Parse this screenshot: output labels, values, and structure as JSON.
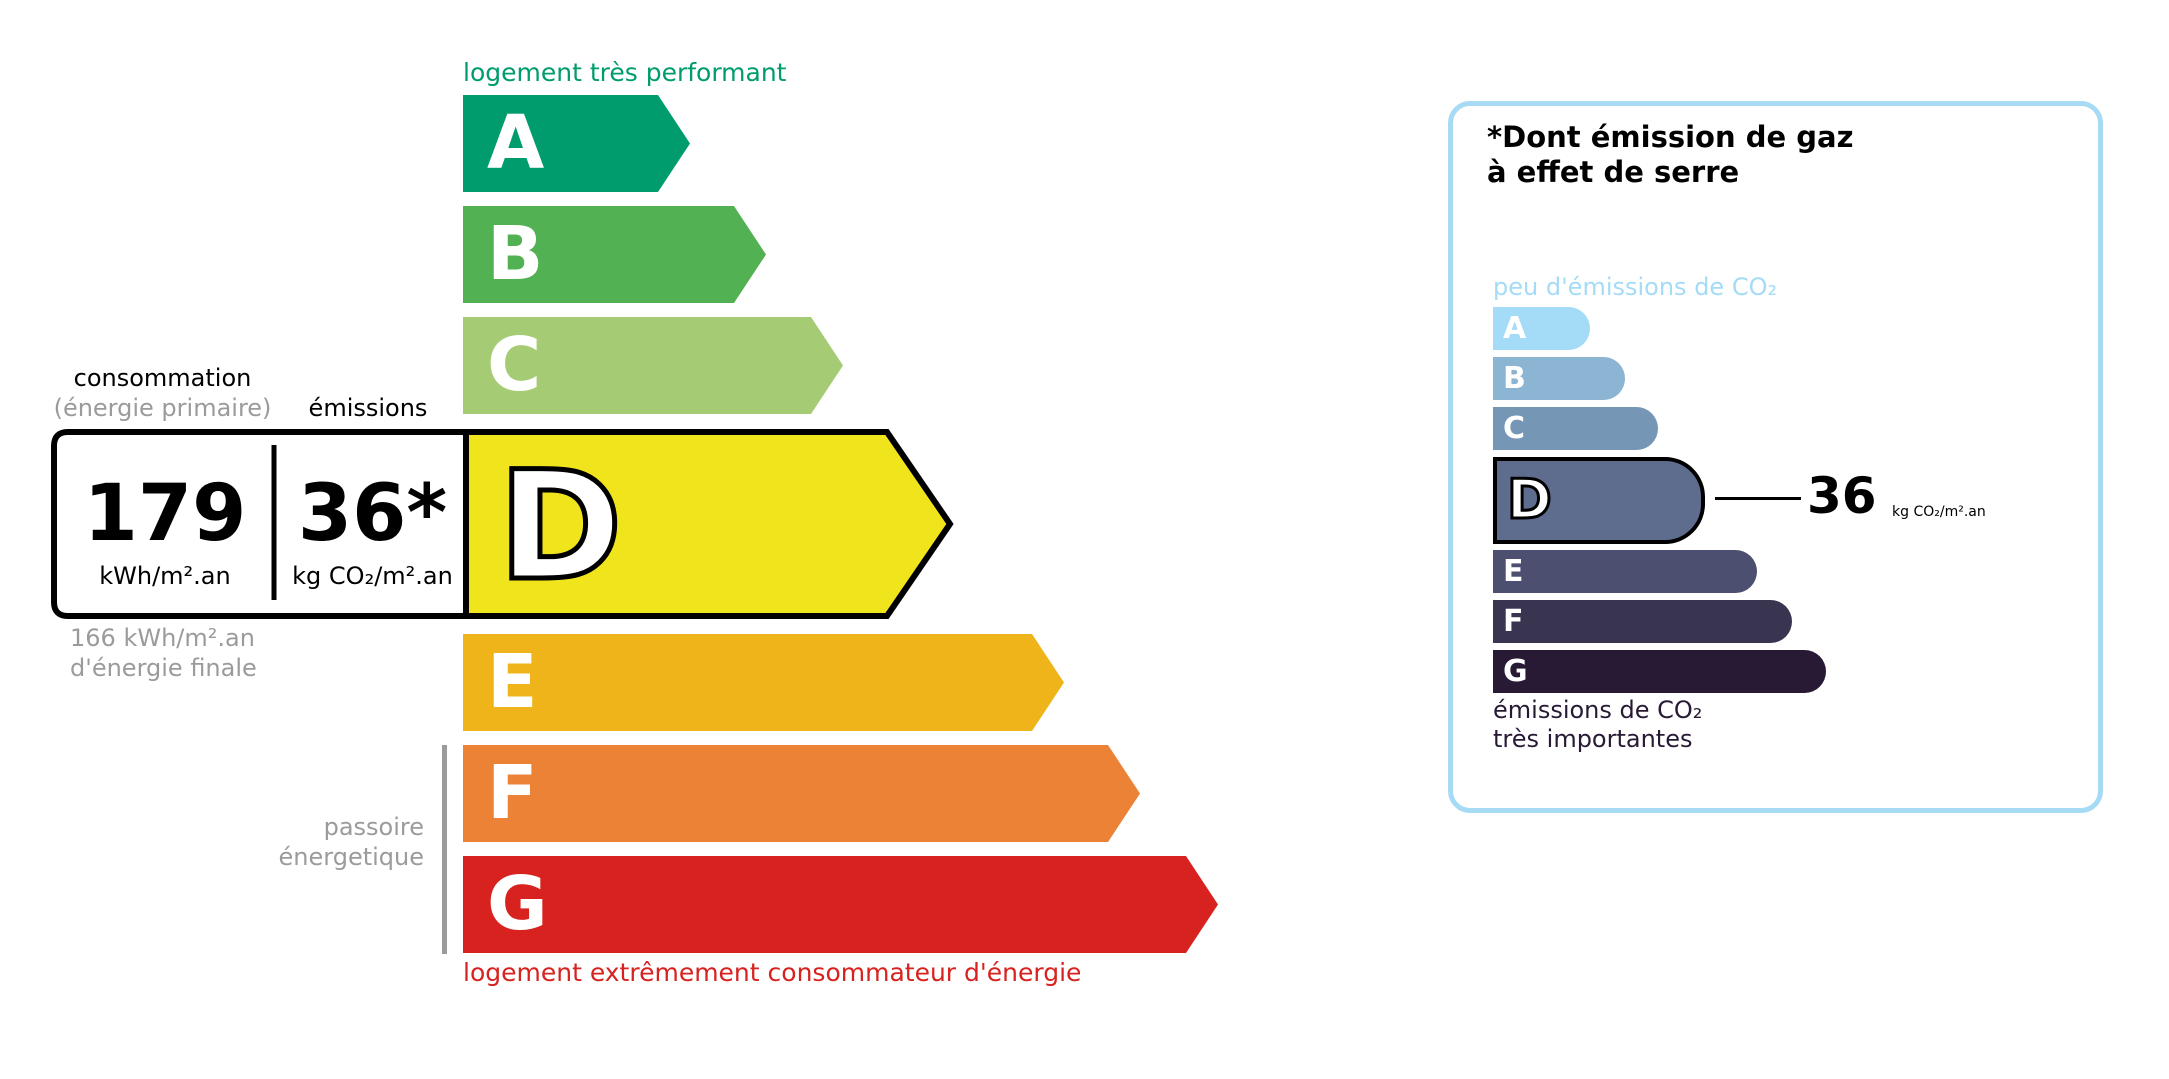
{
  "energy": {
    "top_label": "logement très performant",
    "bottom_label": "logement extrêmement consommateur d'énergie",
    "passoire": [
      "passoire",
      "énergetique"
    ],
    "classes": [
      {
        "letter": "A",
        "color": "#009c6d"
      },
      {
        "letter": "B",
        "color": "#52b153"
      },
      {
        "letter": "C",
        "color": "#a5cc74"
      },
      {
        "letter": "D",
        "color": "#f0e51c"
      },
      {
        "letter": "E",
        "color": "#efb41a"
      },
      {
        "letter": "F",
        "color": "#eb8235"
      },
      {
        "letter": "G",
        "color": "#d7221f"
      }
    ],
    "current_class": "D",
    "consumption_label": "consommation",
    "consumption_sublabel": "(énergie primaire)",
    "emissions_label": "émissions",
    "consumption_value": "179",
    "consumption_unit": "kWh/m².an",
    "emissions_value": "36*",
    "emissions_unit": "kg CO₂/m².an",
    "final_energy": "166 kWh/m².an",
    "final_energy_label": "d'énergie finale"
  },
  "ghg": {
    "title_line1": "*Dont émission de gaz",
    "title_line2": "à effet de serre",
    "top_label": "peu d'émissions de CO₂",
    "bottom_line1": "émissions de CO₂",
    "bottom_line2": "très importantes",
    "classes": [
      {
        "letter": "A",
        "color": "#a4dbf7"
      },
      {
        "letter": "B",
        "color": "#8cb4d3"
      },
      {
        "letter": "C",
        "color": "#7596b5"
      },
      {
        "letter": "D",
        "color": "#5e6d8e"
      },
      {
        "letter": "E",
        "color": "#4c4f70"
      },
      {
        "letter": "F",
        "color": "#393551"
      },
      {
        "letter": "G",
        "color": "#281a35"
      }
    ],
    "current_class": "D",
    "value": "36",
    "unit": "kg CO₂/m².an",
    "border_color": "#a6daf5"
  }
}
